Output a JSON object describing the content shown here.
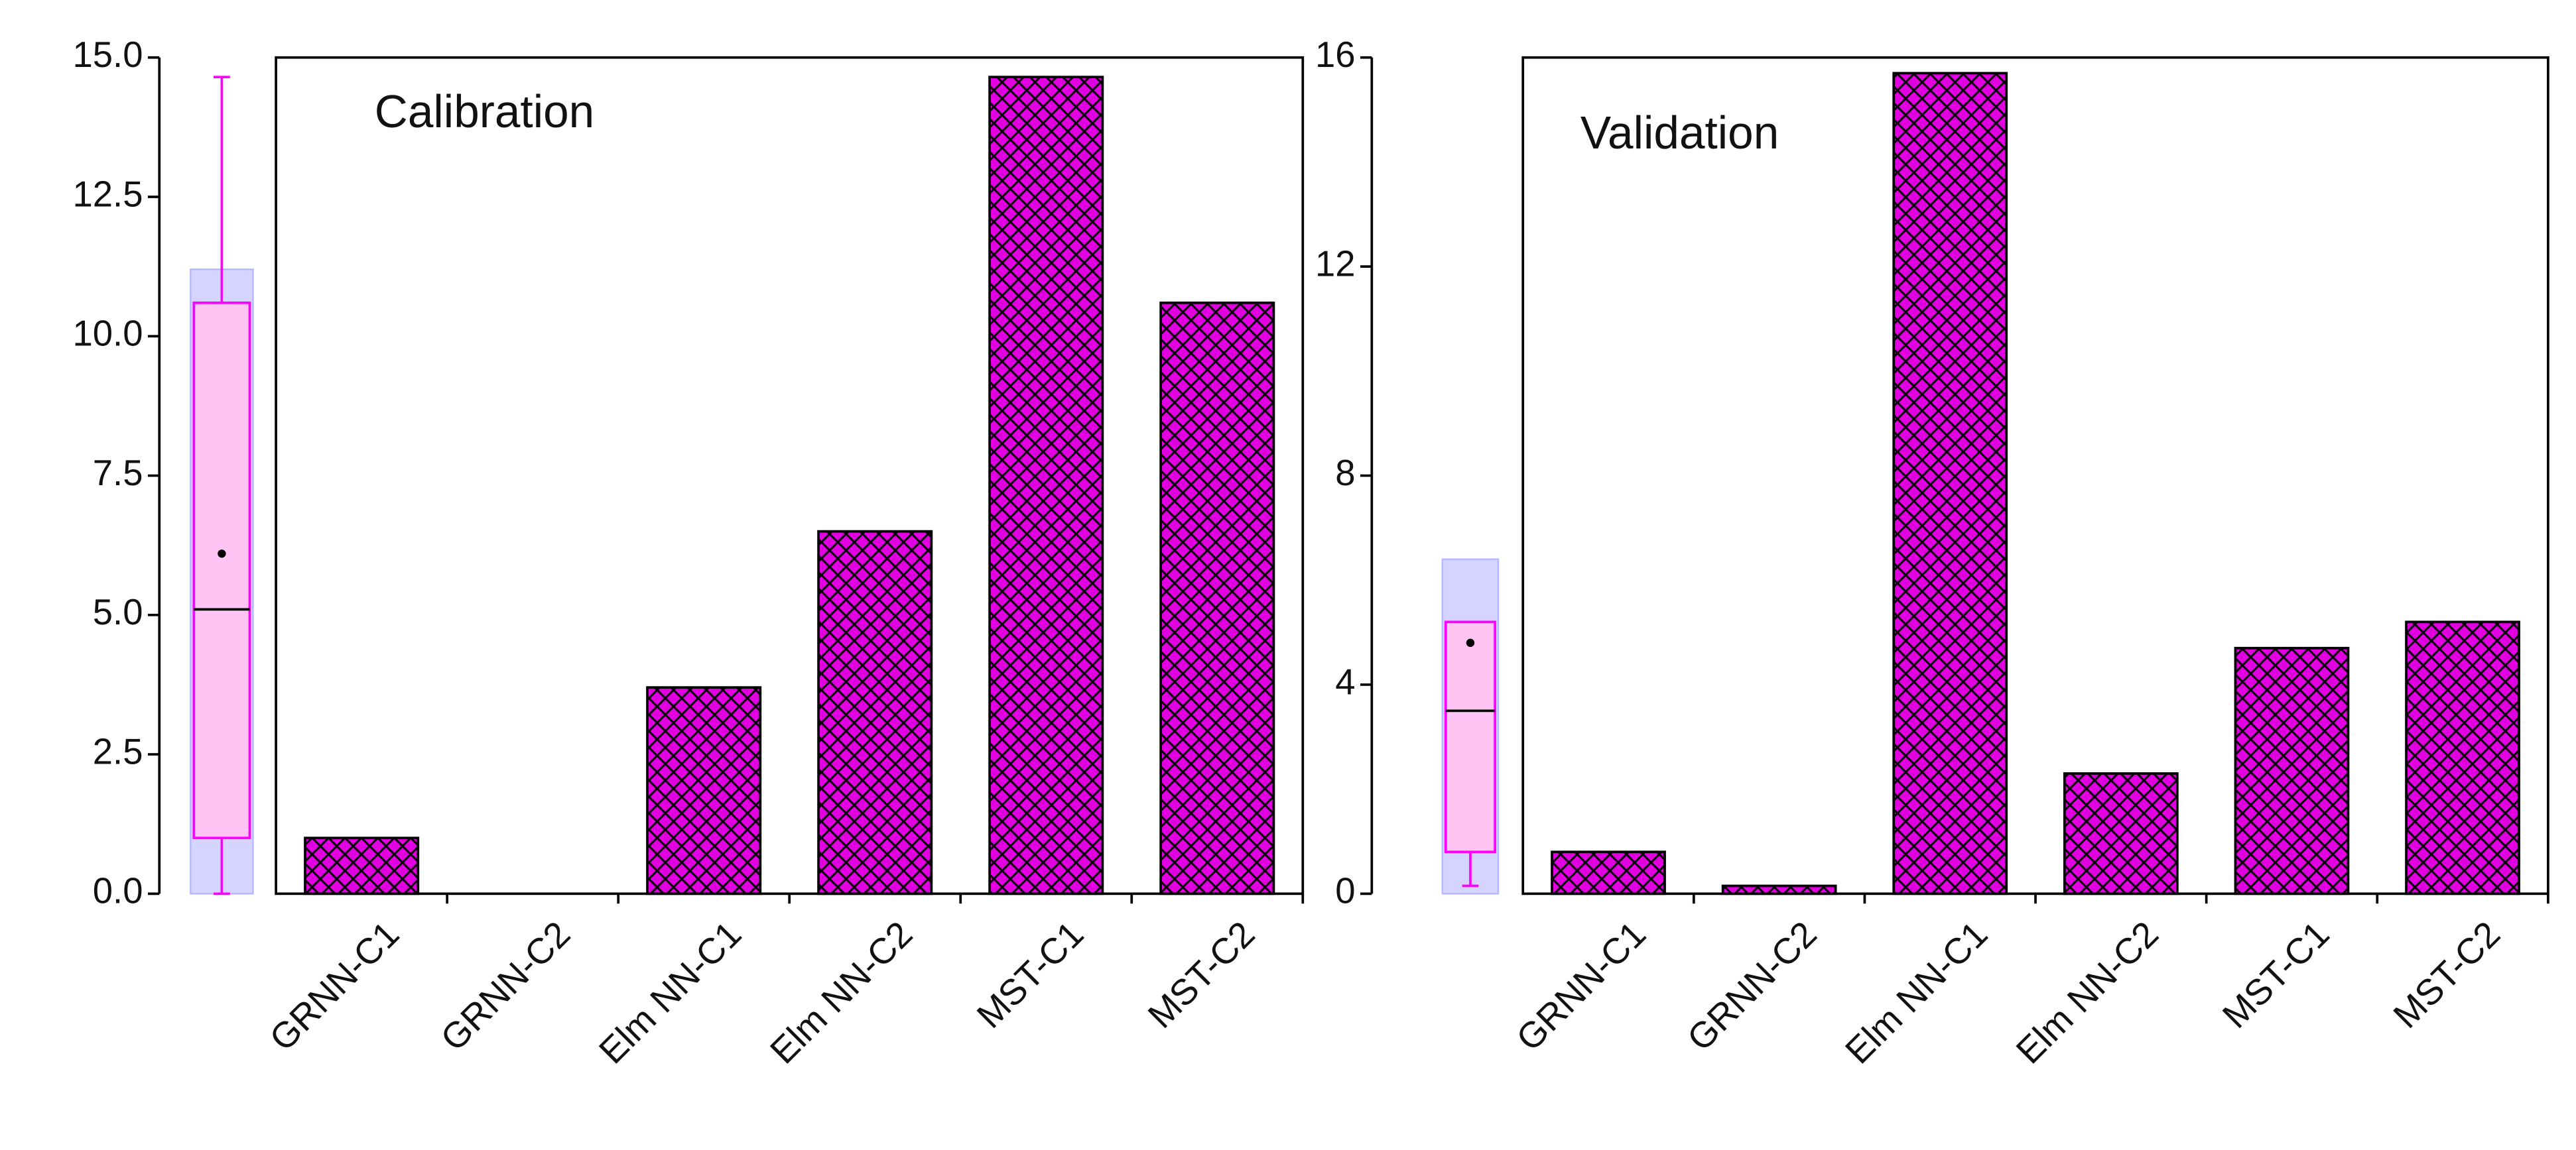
{
  "chart_data": [
    {
      "type": "bar",
      "title": "Calibration",
      "categories": [
        "GRNN-C1",
        "GRNN-C2",
        "Elm NN-C1",
        "Elm NN-C2",
        "MST-C1",
        "MST-C2"
      ],
      "values": [
        1.0,
        0,
        3.7,
        6.5,
        14.65,
        10.6
      ],
      "color": "#e000e0",
      "ylim": [
        0,
        15
      ],
      "yticks": [
        {
          "value": 0,
          "label": "0.0"
        },
        {
          "value": 2.5,
          "label": "2.5"
        },
        {
          "value": 5,
          "label": "5.0"
        },
        {
          "value": 7.5,
          "label": "7.5"
        },
        {
          "value": 10,
          "label": "10.0"
        },
        {
          "value": 12.5,
          "label": "12.5"
        },
        {
          "value": 15,
          "label": "15.0"
        }
      ],
      "box": {
        "min": 0,
        "q1": 1.0,
        "median": 5.1,
        "q3": 10.6,
        "max": 14.65,
        "mean": 6.1,
        "shade": [
          0,
          11.2
        ]
      }
    },
    {
      "type": "bar",
      "title": "Validation",
      "categories": [
        "GRNN-C1",
        "GRNN-C2",
        "Elm NN-C1",
        "Elm NN-C2",
        "MST-C1",
        "MST-C2"
      ],
      "values": [
        0.8,
        0.15,
        15.7,
        2.3,
        4.7,
        5.2
      ],
      "color": "#e000e0",
      "ylim": [
        0,
        16
      ],
      "yticks": [
        0,
        4,
        8,
        12,
        16
      ],
      "box": {
        "min": 0.15,
        "q1": 0.8,
        "median": 3.5,
        "q3": 5.2,
        "max": 5.2,
        "mean": 4.8,
        "shade": [
          0,
          6.4
        ]
      }
    }
  ]
}
